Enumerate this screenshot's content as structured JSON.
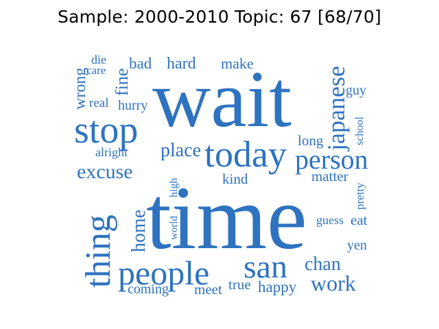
{
  "title": "Sample: 2000-2010 Topic: 67 [68/70]",
  "word_color": "#2e73c0",
  "words": [
    {
      "text": "time",
      "weight": 1.0
    },
    {
      "text": "wait",
      "weight": 0.95
    },
    {
      "text": "stop",
      "weight": 0.55
    },
    {
      "text": "today",
      "weight": 0.55
    },
    {
      "text": "san",
      "weight": 0.5
    },
    {
      "text": "people",
      "weight": 0.5
    },
    {
      "text": "thing",
      "weight": 0.48
    },
    {
      "text": "person",
      "weight": 0.42
    },
    {
      "text": "japanese",
      "weight": 0.4
    },
    {
      "text": "work",
      "weight": 0.33
    },
    {
      "text": "excuse",
      "weight": 0.32
    },
    {
      "text": "place",
      "weight": 0.3
    },
    {
      "text": "home",
      "weight": 0.3
    },
    {
      "text": "chan",
      "weight": 0.28
    },
    {
      "text": "fine",
      "weight": 0.27
    },
    {
      "text": "wrong",
      "weight": 0.25
    },
    {
      "text": "hard",
      "weight": 0.24
    },
    {
      "text": "bad",
      "weight": 0.23
    },
    {
      "text": "happy",
      "weight": 0.23
    },
    {
      "text": "meet",
      "weight": 0.22
    },
    {
      "text": "make",
      "weight": 0.22
    },
    {
      "text": "true",
      "weight": 0.22
    },
    {
      "text": "matter",
      "weight": 0.22
    },
    {
      "text": "coming",
      "weight": 0.21
    },
    {
      "text": "eat",
      "weight": 0.21
    },
    {
      "text": "kind",
      "weight": 0.21
    },
    {
      "text": "long",
      "weight": 0.21
    },
    {
      "text": "hurry",
      "weight": 0.2
    },
    {
      "text": "yen",
      "weight": 0.2
    },
    {
      "text": "guy",
      "weight": 0.2
    },
    {
      "text": "real",
      "weight": 0.19
    },
    {
      "text": "alright",
      "weight": 0.19
    },
    {
      "text": "guess",
      "weight": 0.19
    },
    {
      "text": "die",
      "weight": 0.18
    },
    {
      "text": "care",
      "weight": 0.18
    },
    {
      "text": "pretty",
      "weight": 0.18
    },
    {
      "text": "school",
      "weight": 0.17
    },
    {
      "text": "high",
      "weight": 0.17
    },
    {
      "text": "world",
      "weight": 0.17
    }
  ]
}
